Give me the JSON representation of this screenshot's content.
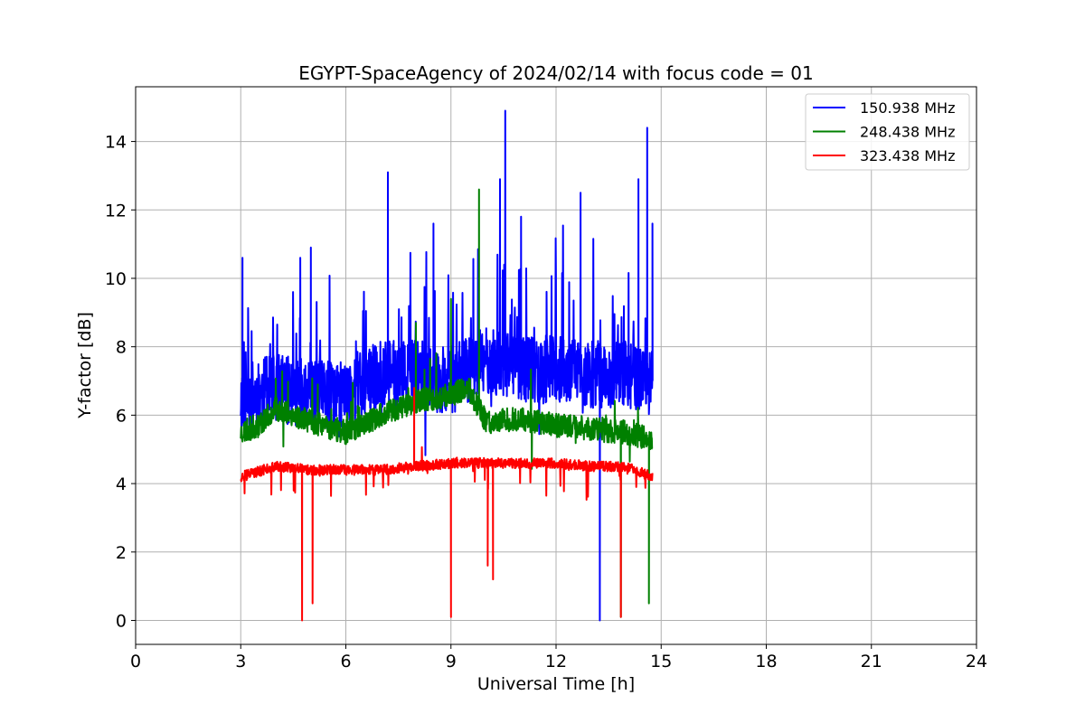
{
  "chart_data": {
    "type": "line",
    "title": "EGYPT-SpaceAgency of 2024/02/14 with focus code = 01",
    "xlabel": "Universal Time [h]",
    "ylabel": "Y-factor [dB]",
    "xlim": [
      0,
      24
    ],
    "ylim": [
      -0.7,
      15.6
    ],
    "xticks": [
      0,
      3,
      6,
      9,
      12,
      15,
      18,
      21,
      24
    ],
    "yticks": [
      0,
      2,
      4,
      6,
      8,
      10,
      12,
      14
    ],
    "grid": true,
    "legend_position": "top-right",
    "series": [
      {
        "name": "150.938 MHz",
        "color": "#0000ff",
        "time_range": [
          3.0,
          14.75
        ],
        "baseline_profile": [
          [
            3.0,
            6.5
          ],
          [
            4.0,
            6.8
          ],
          [
            5.0,
            6.6
          ],
          [
            6.0,
            6.6
          ],
          [
            7.0,
            7.2
          ],
          [
            8.0,
            7.2
          ],
          [
            9.0,
            7.0
          ],
          [
            10.0,
            7.6
          ],
          [
            11.0,
            7.4
          ],
          [
            12.0,
            7.3
          ],
          [
            13.0,
            7.2
          ],
          [
            14.0,
            7.1
          ],
          [
            14.75,
            7.0
          ]
        ],
        "notable_points": [
          [
            3.05,
            10.6
          ],
          [
            4.7,
            10.6
          ],
          [
            5.0,
            10.9
          ],
          [
            7.2,
            13.1
          ],
          [
            8.5,
            11.6
          ],
          [
            10.4,
            12.9
          ],
          [
            10.55,
            14.9
          ],
          [
            11.0,
            11.8
          ],
          [
            12.7,
            12.5
          ],
          [
            13.25,
            0.0
          ],
          [
            14.35,
            12.9
          ],
          [
            14.6,
            14.4
          ],
          [
            14.75,
            11.6
          ]
        ]
      },
      {
        "name": "248.438 MHz",
        "color": "#008000",
        "time_range": [
          3.0,
          14.75
        ],
        "baseline_profile": [
          [
            3.0,
            5.5
          ],
          [
            3.5,
            5.7
          ],
          [
            4.0,
            6.2
          ],
          [
            5.0,
            5.8
          ],
          [
            6.0,
            5.5
          ],
          [
            7.0,
            6.0
          ],
          [
            8.0,
            6.4
          ],
          [
            9.0,
            6.6
          ],
          [
            9.5,
            6.8
          ],
          [
            10.0,
            5.8
          ],
          [
            11.0,
            5.9
          ],
          [
            12.0,
            5.7
          ],
          [
            13.0,
            5.6
          ],
          [
            14.0,
            5.5
          ],
          [
            14.75,
            5.3
          ]
        ],
        "notable_points": [
          [
            8.0,
            8.7
          ],
          [
            9.0,
            9.4
          ],
          [
            9.8,
            12.6
          ],
          [
            13.85,
            0.1
          ],
          [
            14.65,
            0.5
          ]
        ]
      },
      {
        "name": "323.438 MHz",
        "color": "#ff0000",
        "time_range": [
          3.0,
          14.75
        ],
        "baseline_profile": [
          [
            3.0,
            4.2
          ],
          [
            4.0,
            4.5
          ],
          [
            5.0,
            4.4
          ],
          [
            6.0,
            4.4
          ],
          [
            7.0,
            4.4
          ],
          [
            8.0,
            4.5
          ],
          [
            9.0,
            4.6
          ],
          [
            10.0,
            4.6
          ],
          [
            11.0,
            4.6
          ],
          [
            12.0,
            4.6
          ],
          [
            13.0,
            4.5
          ],
          [
            14.0,
            4.5
          ],
          [
            14.75,
            4.2
          ]
        ],
        "notable_points": [
          [
            4.75,
            0.0
          ],
          [
            5.05,
            0.5
          ],
          [
            9.0,
            0.1
          ],
          [
            10.05,
            1.6
          ],
          [
            10.2,
            1.2
          ],
          [
            13.85,
            0.1
          ],
          [
            7.95,
            6.8
          ]
        ]
      }
    ]
  }
}
